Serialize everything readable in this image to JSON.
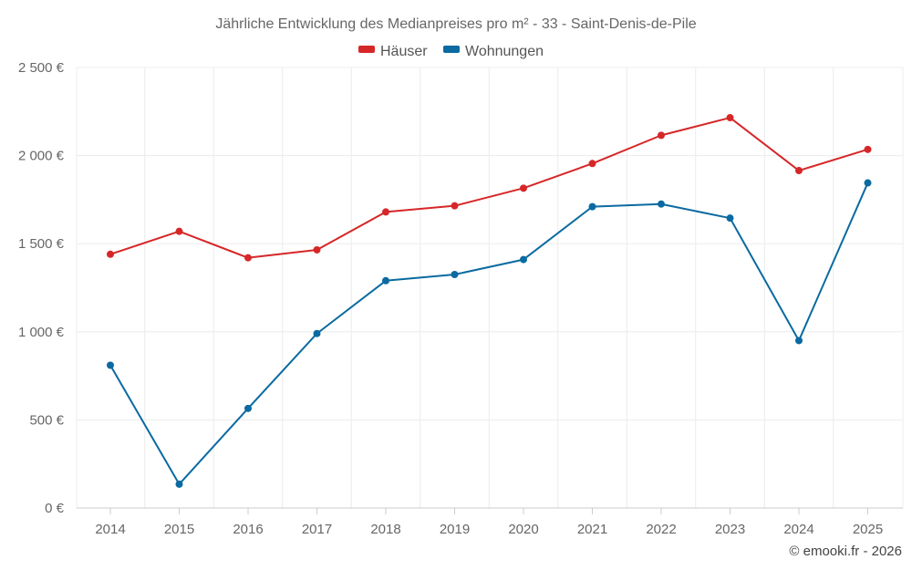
{
  "chart_data": {
    "type": "line",
    "title": "Jährliche Entwicklung des Medianpreises pro m² - 33 - Saint-Denis-de-Pile",
    "categories": [
      "2014",
      "2015",
      "2016",
      "2017",
      "2018",
      "2019",
      "2020",
      "2021",
      "2022",
      "2023",
      "2024",
      "2025"
    ],
    "series": [
      {
        "name": "Häuser",
        "color": "#d62728",
        "values": [
          1440,
          1570,
          1420,
          1465,
          1680,
          1715,
          1815,
          1955,
          2115,
          2215,
          1915,
          2035
        ]
      },
      {
        "name": "Wohnungen",
        "color": "#0a6aa1",
        "values": [
          810,
          135,
          565,
          990,
          1290,
          1325,
          1410,
          1710,
          1725,
          1645,
          950,
          1845
        ]
      }
    ],
    "yticks": [
      {
        "value": 0,
        "label": "0 €"
      },
      {
        "value": 500,
        "label": "500 €"
      },
      {
        "value": 1000,
        "label": "1 000 €"
      },
      {
        "value": 1500,
        "label": "1 500 €"
      },
      {
        "value": 2000,
        "label": "2 000 €"
      },
      {
        "value": 2500,
        "label": "2 500 €"
      }
    ],
    "ylim": [
      0,
      2500
    ],
    "grid": true,
    "legend_position": "top-center",
    "xlabel": "",
    "ylabel": ""
  },
  "credit": "© emooki.fr - 2026"
}
